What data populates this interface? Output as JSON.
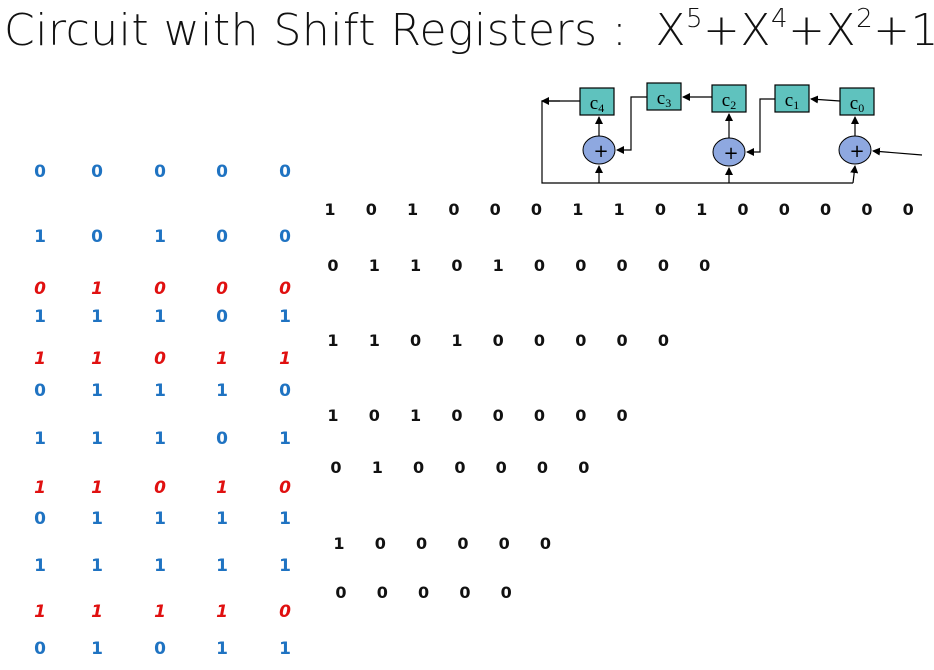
{
  "title": {
    "prefix": "Circuit with Shift Registers :",
    "poly_terms": [
      {
        "base": "X",
        "exp": "5"
      },
      {
        "base": "+X",
        "exp": "4"
      },
      {
        "base": "+X",
        "exp": "2"
      },
      {
        "base": "+1",
        "exp": ""
      }
    ]
  },
  "circuit": {
    "registers": [
      {
        "label": "c",
        "sub": "4"
      },
      {
        "label": "c",
        "sub": "3"
      },
      {
        "label": "c",
        "sub": "2"
      },
      {
        "label": "c",
        "sub": "1"
      },
      {
        "label": "c",
        "sub": "0"
      }
    ],
    "adder_symbol": "+",
    "colors": {
      "register_fill": "#5fc2be",
      "adder_fill": "#8ea8e0",
      "line": "#000000"
    }
  },
  "register_states": [
    {
      "type": "state",
      "values": [
        "0",
        "0",
        "0",
        "0",
        "0"
      ]
    },
    {
      "type": "state",
      "values": [
        "1",
        "0",
        "1",
        "0",
        "0"
      ]
    },
    {
      "type": "feedback",
      "values": [
        "0",
        "1",
        "0",
        "0",
        "0"
      ]
    },
    {
      "type": "state",
      "values": [
        "1",
        "1",
        "1",
        "0",
        "1"
      ]
    },
    {
      "type": "feedback",
      "values": [
        "1",
        "1",
        "0",
        "1",
        "1"
      ]
    },
    {
      "type": "state",
      "values": [
        "0",
        "1",
        "1",
        "1",
        "0"
      ]
    },
    {
      "type": "state",
      "values": [
        "1",
        "1",
        "1",
        "0",
        "1"
      ]
    },
    {
      "type": "feedback",
      "values": [
        "1",
        "1",
        "0",
        "1",
        "0"
      ]
    },
    {
      "type": "state",
      "values": [
        "0",
        "1",
        "1",
        "1",
        "1"
      ]
    },
    {
      "type": "state",
      "values": [
        "1",
        "1",
        "1",
        "1",
        "1"
      ]
    },
    {
      "type": "feedback",
      "values": [
        "1",
        "1",
        "1",
        "1",
        "0"
      ]
    },
    {
      "type": "state",
      "values": [
        "0",
        "1",
        "0",
        "1",
        "1"
      ]
    }
  ],
  "division_rows": [
    [
      "1",
      "0",
      "1",
      "0",
      "0",
      "0",
      "1",
      "1",
      "0",
      "1",
      "0",
      "0",
      "0",
      "0",
      "0"
    ],
    [
      "0",
      "1",
      "1",
      "0",
      "1",
      "0",
      "0",
      "0",
      "0",
      "0"
    ],
    [
      "1",
      "1",
      "0",
      "1",
      "0",
      "0",
      "0",
      "0",
      "0"
    ],
    [
      "1",
      "0",
      "1",
      "0",
      "0",
      "0",
      "0",
      "0"
    ],
    [
      "0",
      "1",
      "0",
      "0",
      "0",
      "0",
      "0"
    ],
    [
      "1",
      "0",
      "0",
      "0",
      "0",
      "0"
    ],
    [
      "0",
      "0",
      "0",
      "0",
      "0"
    ]
  ],
  "colors": {
    "state": "#1f73c2",
    "feedback": "#e01010",
    "text": "#111111"
  }
}
